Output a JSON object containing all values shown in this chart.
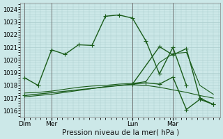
{
  "background_color": "#cce8e8",
  "grid_color": "#aacccc",
  "line_color": "#1a5c1a",
  "xlabel": "Pression niveau de la mer( hPa )",
  "ylim": [
    1015.5,
    1024.5
  ],
  "yticks": [
    1016,
    1017,
    1018,
    1019,
    1020,
    1021,
    1022,
    1023,
    1024
  ],
  "xtick_labels": [
    "Dim",
    "Mer",
    "Lun",
    "Mar"
  ],
  "xtick_positions": [
    0,
    2,
    8,
    11
  ],
  "xlim": [
    -0.3,
    14.5
  ],
  "line1_x": [
    0,
    1,
    2,
    3,
    4,
    5,
    6,
    7,
    8,
    9,
    10,
    11,
    12
  ],
  "line1_y": [
    1018.6,
    1018.0,
    1020.8,
    1020.45,
    1021.2,
    1021.15,
    1023.45,
    1023.55,
    1023.3,
    1021.5,
    1018.9,
    1021.0,
    1018.0
  ],
  "line2_x": [
    0,
    1,
    2,
    3,
    4,
    5,
    6,
    7,
    8,
    9,
    10,
    11,
    12,
    13,
    14
  ],
  "line2_y": [
    1017.4,
    1017.45,
    1017.55,
    1017.7,
    1017.85,
    1017.95,
    1018.0,
    1018.1,
    1018.15,
    1018.3,
    1019.8,
    1020.5,
    1020.6,
    1018.0,
    1017.3
  ],
  "line3_x": [
    0,
    1,
    2,
    3,
    4,
    5,
    6,
    7,
    8,
    9,
    10,
    11,
    12,
    13,
    14
  ],
  "line3_y": [
    1017.1,
    1017.2,
    1017.3,
    1017.45,
    1017.6,
    1017.75,
    1017.9,
    1018.0,
    1018.05,
    1018.0,
    1017.85,
    1017.65,
    1017.45,
    1017.2,
    1017.0
  ],
  "line4_x": [
    0,
    8,
    10,
    11,
    12,
    13,
    14
  ],
  "line4_y": [
    1017.2,
    1018.1,
    1021.05,
    1020.4,
    1020.9,
    1017.0,
    1016.5
  ],
  "line5_x": [
    8,
    9,
    10,
    11,
    12,
    13,
    14
  ],
  "line5_y": [
    1018.1,
    1018.2,
    1018.1,
    1018.65,
    1016.1,
    1016.9,
    1016.5
  ]
}
